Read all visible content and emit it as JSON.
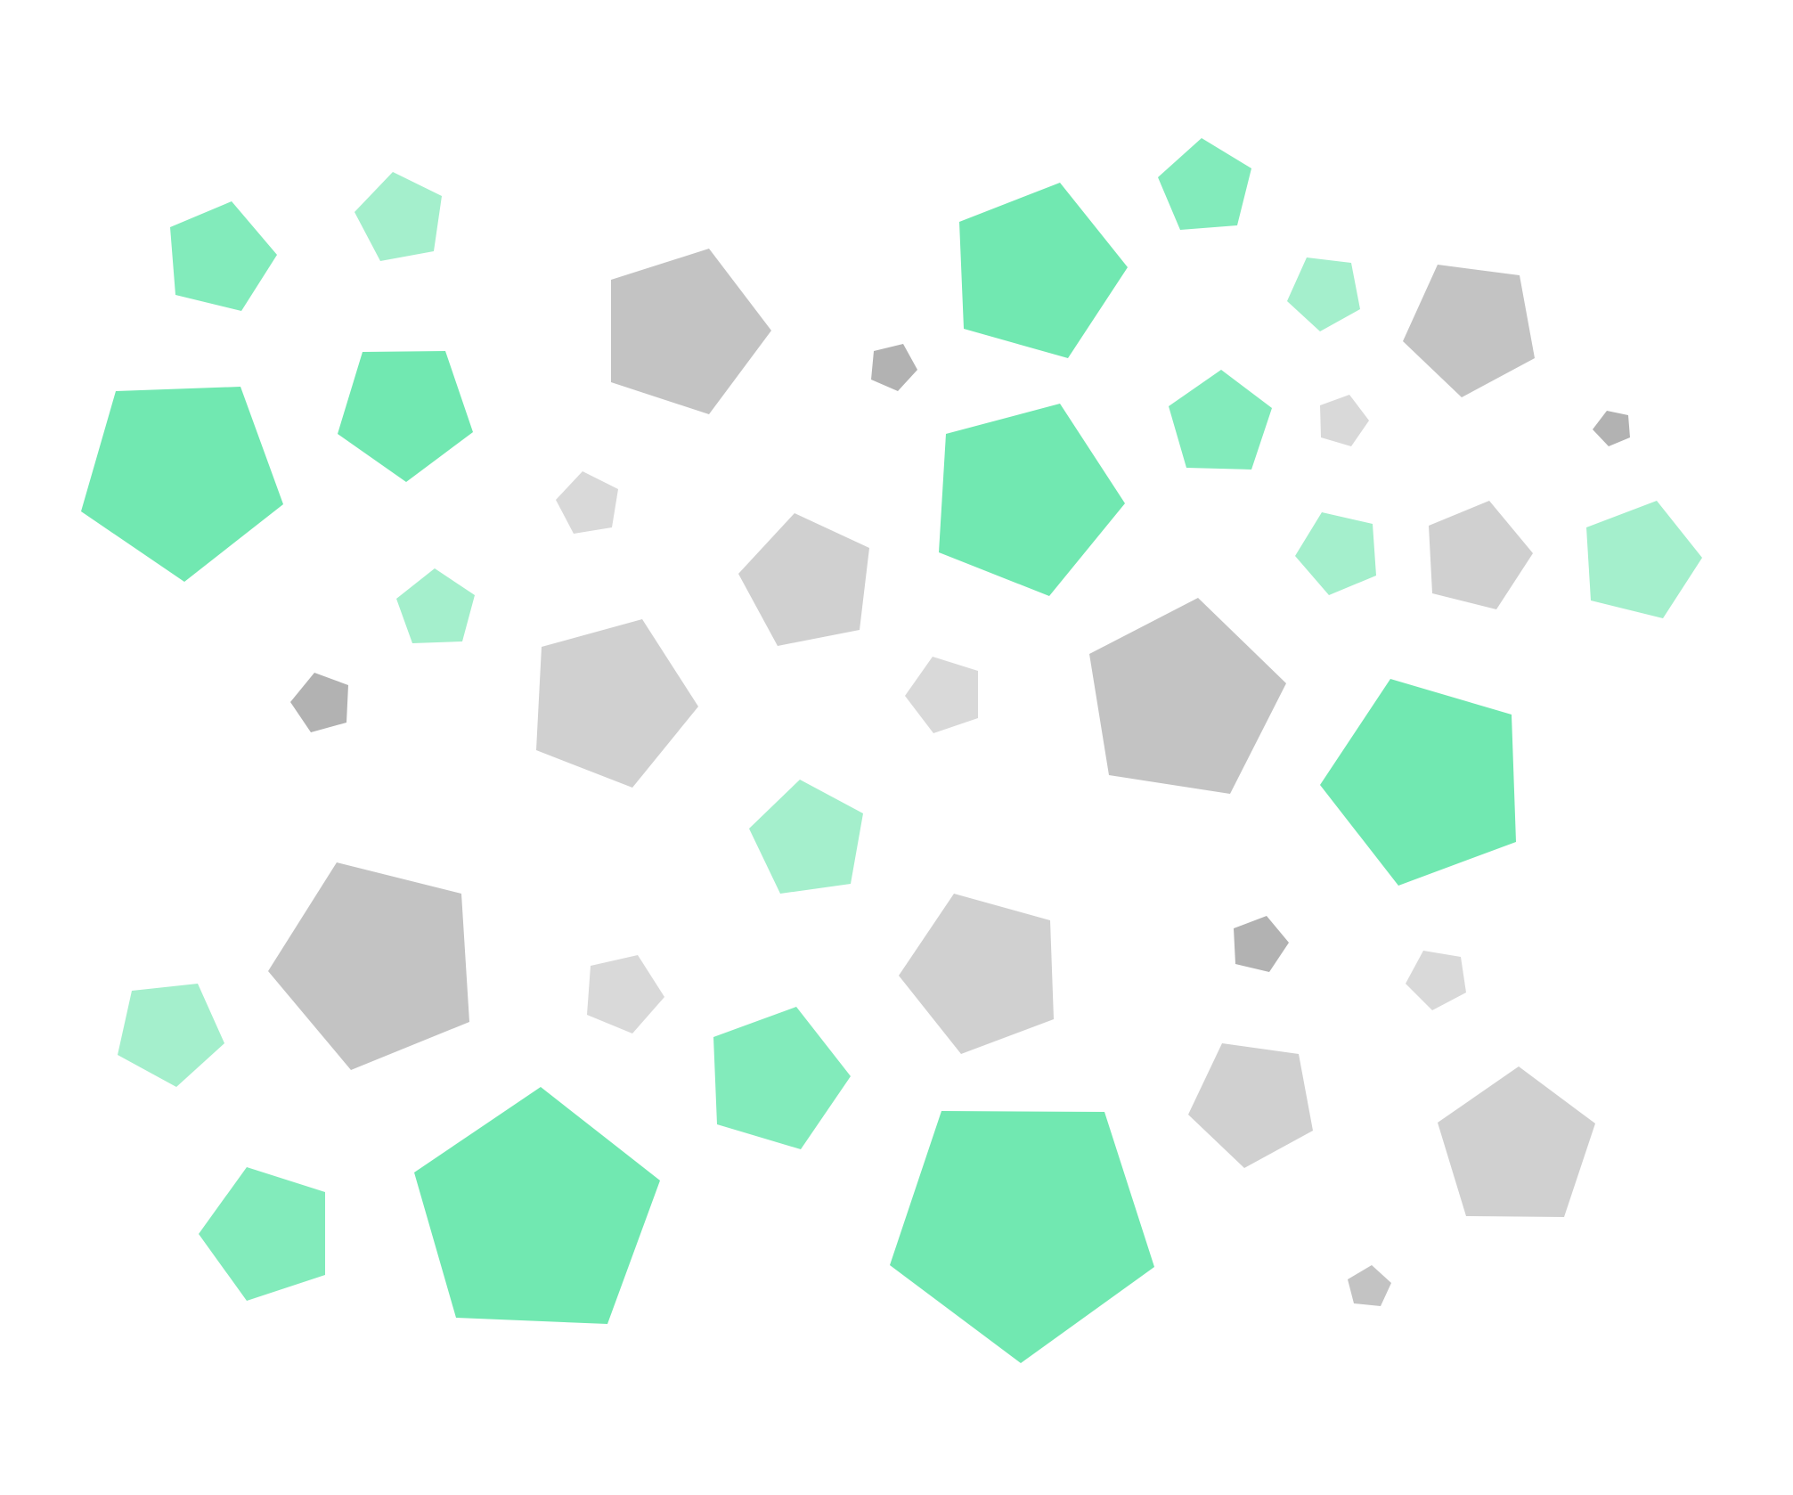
{
  "palette": {
    "green": "#71e8b1",
    "green_medium": "#82ebbb",
    "green_light": "#a4efcc",
    "gray_dark": "#b2b2b2",
    "gray": "#c3c3c3",
    "gray_light": "#d0d0d0",
    "gray_lightest": "#d9d9d9"
  },
  "shapes": [
    {
      "id": "p1",
      "kind": "pentagon",
      "color": "green_medium"
    },
    {
      "id": "p2",
      "kind": "pentagon",
      "color": "green_light"
    },
    {
      "id": "p3",
      "kind": "pentagon",
      "color": "gray"
    },
    {
      "id": "p4",
      "kind": "pentagon",
      "color": "gray_dark"
    },
    {
      "id": "p5",
      "kind": "pentagon",
      "color": "green"
    },
    {
      "id": "p6",
      "kind": "pentagon",
      "color": "green_medium"
    },
    {
      "id": "p7",
      "kind": "pentagon",
      "color": "green_light"
    },
    {
      "id": "p8",
      "kind": "pentagon",
      "color": "gray"
    },
    {
      "id": "p9",
      "kind": "pentagon",
      "color": "green"
    },
    {
      "id": "p10",
      "kind": "pentagon",
      "color": "green"
    },
    {
      "id": "p11",
      "kind": "pentagon",
      "color": "gray_lightest"
    },
    {
      "id": "p12",
      "kind": "pentagon",
      "color": "gray_light"
    },
    {
      "id": "p13",
      "kind": "pentagon",
      "color": "green"
    },
    {
      "id": "p14",
      "kind": "pentagon",
      "color": "green_medium"
    },
    {
      "id": "p15",
      "kind": "pentagon",
      "color": "gray_lightest"
    },
    {
      "id": "p16",
      "kind": "pentagon",
      "color": "gray_dark"
    },
    {
      "id": "p17",
      "kind": "pentagon",
      "color": "green_light"
    },
    {
      "id": "p18",
      "kind": "pentagon",
      "color": "gray_light"
    },
    {
      "id": "p19",
      "kind": "pentagon",
      "color": "green_light"
    },
    {
      "id": "p20",
      "kind": "pentagon",
      "color": "green_light"
    },
    {
      "id": "p21",
      "kind": "pentagon",
      "color": "gray_dark"
    },
    {
      "id": "p22",
      "kind": "pentagon",
      "color": "gray_light"
    },
    {
      "id": "p23",
      "kind": "pentagon",
      "color": "gray_lightest"
    },
    {
      "id": "p24",
      "kind": "pentagon",
      "color": "gray"
    },
    {
      "id": "p25",
      "kind": "pentagon",
      "color": "green"
    },
    {
      "id": "p26",
      "kind": "pentagon",
      "color": "green_light"
    },
    {
      "id": "p27",
      "kind": "pentagon",
      "color": "gray"
    },
    {
      "id": "p28",
      "kind": "pentagon",
      "color": "gray_light"
    },
    {
      "id": "p29",
      "kind": "pentagon",
      "color": "gray_dark"
    },
    {
      "id": "p30",
      "kind": "pentagon",
      "color": "green_light"
    },
    {
      "id": "p31",
      "kind": "pentagon",
      "color": "gray_lightest"
    },
    {
      "id": "p32",
      "kind": "pentagon",
      "color": "gray_lightest"
    },
    {
      "id": "p33",
      "kind": "pentagon",
      "color": "green_medium"
    },
    {
      "id": "p34",
      "kind": "pentagon",
      "color": "gray_light"
    },
    {
      "id": "p35",
      "kind": "pentagon",
      "color": "green_medium"
    },
    {
      "id": "p36",
      "kind": "pentagon",
      "color": "green"
    },
    {
      "id": "p37",
      "kind": "pentagon",
      "color": "green"
    },
    {
      "id": "p38",
      "kind": "pentagon",
      "color": "gray_light"
    },
    {
      "id": "p39",
      "kind": "pentagon",
      "color": "gray"
    },
    {
      "id": "p40",
      "kind": "pentagon",
      "color": "gray_dark"
    }
  ]
}
